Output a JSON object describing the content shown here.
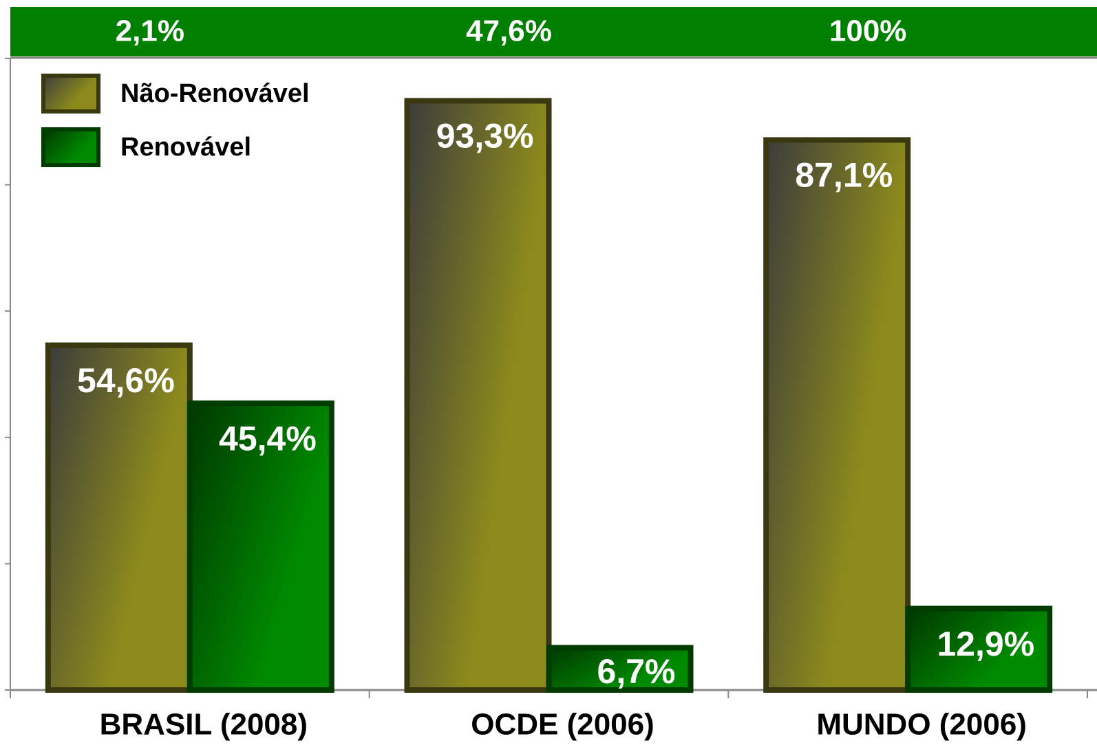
{
  "chart_data": {
    "type": "bar",
    "banner_labels": [
      "2,1%",
      "47,6%",
      "100%"
    ],
    "categories": [
      "BRASIL (2008)",
      "OCDE (2006)",
      "MUNDO (2006)"
    ],
    "series": [
      {
        "name": "Não-Renovável",
        "color": "#8c8a1c",
        "values": [
          54.6,
          93.3,
          87.1
        ],
        "value_labels": [
          "54,6%",
          "93,3%",
          "87,1%"
        ]
      },
      {
        "name": "Renovável",
        "color": "#008a00",
        "values": [
          45.4,
          6.7,
          12.9
        ],
        "value_labels": [
          "45,4%",
          "6,7%",
          "12,9%"
        ]
      }
    ],
    "ylim": [
      0,
      100
    ],
    "yticks": [
      0,
      20,
      40,
      60,
      80,
      100
    ],
    "legend": "upper left"
  }
}
